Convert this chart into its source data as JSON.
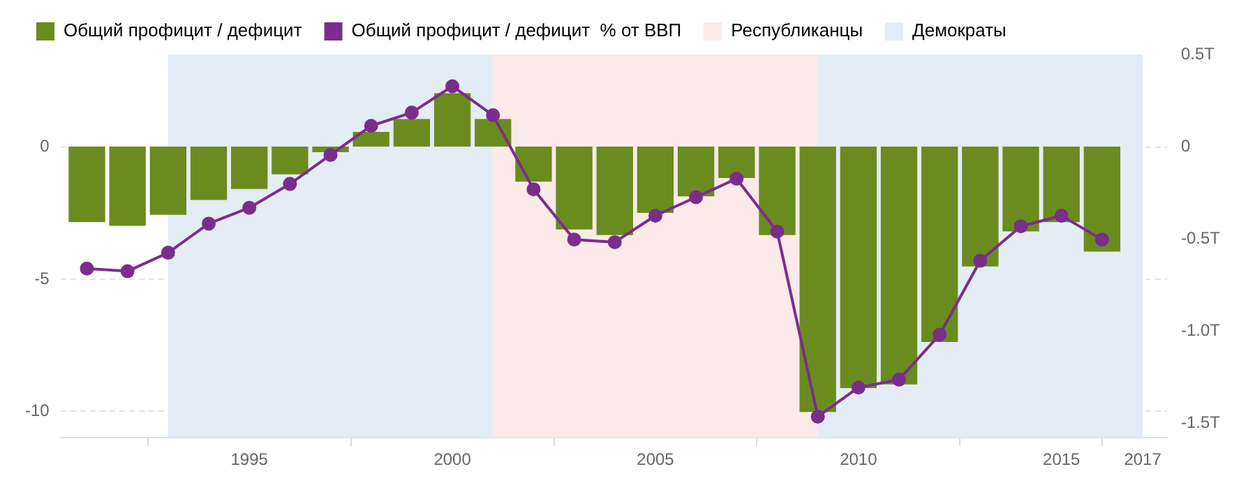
{
  "chart_data": {
    "type": "bar",
    "x": [
      1991,
      1992,
      1993,
      1994,
      1995,
      1996,
      1997,
      1998,
      1999,
      2000,
      2001,
      2002,
      2003,
      2004,
      2005,
      2006,
      2007,
      2008,
      2009,
      2010,
      2011,
      2012,
      2013,
      2014,
      2015,
      2016
    ],
    "series": [
      {
        "name": "Общий профицит / дефицит",
        "axis": "y2",
        "color": "#6a8c1f",
        "values": [
          -0.41,
          -0.43,
          -0.37,
          -0.29,
          -0.23,
          -0.15,
          -0.03,
          0.08,
          0.15,
          0.29,
          0.15,
          -0.19,
          -0.45,
          -0.48,
          -0.36,
          -0.27,
          -0.17,
          -0.48,
          -1.44,
          -1.31,
          -1.29,
          -1.06,
          -0.65,
          -0.46,
          -0.41,
          -0.57
        ]
      },
      {
        "name": "Общий профицит / дефицит  % от ВВП",
        "type": "line",
        "axis": "y",
        "color": "#7b2d8b",
        "values": [
          -4.6,
          -4.7,
          -4.0,
          -2.9,
          -2.3,
          -1.4,
          -0.3,
          0.8,
          1.3,
          2.3,
          1.2,
          -1.6,
          -3.5,
          -3.6,
          -2.6,
          -1.9,
          -1.2,
          -3.2,
          -10.2,
          -9.1,
          -8.8,
          -7.1,
          -4.3,
          -3.0,
          -2.6,
          -3.5
        ]
      }
    ],
    "xlim": [
      1990.35,
      2017.6
    ],
    "xticks": [
      1995,
      2000,
      2005,
      2010,
      2015,
      2017
    ],
    "ylim": [
      -11,
      3.5
    ],
    "yticks": [
      0,
      -5,
      -10
    ],
    "y2lim": [
      -1.58,
      0.5
    ],
    "y2ticks": [
      {
        "value": 0.5,
        "label": "0.5T"
      },
      0,
      {
        "value": -0.5,
        "label": "-0.5T"
      },
      {
        "value": -1,
        "label": "-1.0T"
      },
      {
        "value": -1.5,
        "label": "-1.5T"
      }
    ],
    "bands": [
      {
        "axis": "x",
        "from": 1993,
        "to": 2001,
        "color": "#e4ecf6"
      },
      {
        "axis": "x",
        "from": 2001,
        "to": 2009,
        "label": "Республиканцы",
        "color": "#fbeae7"
      },
      {
        "axis": "x",
        "from": 2009,
        "to": 2017,
        "label": "Демократы",
        "color": "#e4ecf6"
      }
    ],
    "grid": "y",
    "legend": "top left",
    "marker": "circle",
    "line_style": "solid"
  }
}
